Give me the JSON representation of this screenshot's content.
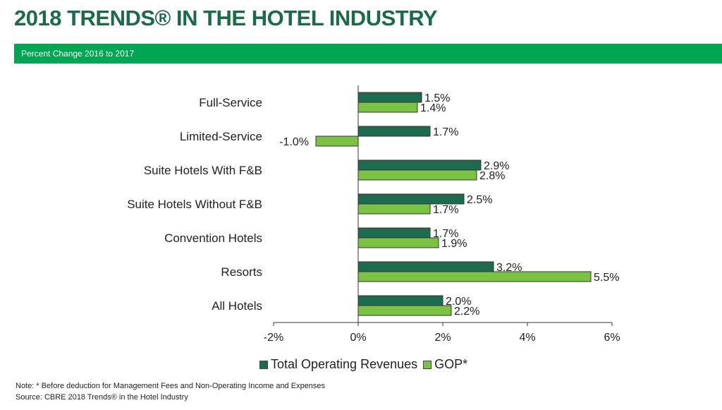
{
  "header": {
    "title": "2018 TRENDS® IN THE HOTEL INDUSTRY",
    "subtitle": "Percent Change 2016 to 2017"
  },
  "colors": {
    "title": "#1a6b48",
    "band": "#00a651",
    "revenues": "#1d6b4f",
    "gop": "#7cc242"
  },
  "chart_data": {
    "type": "bar",
    "orientation": "horizontal",
    "categories": [
      "Full-Service",
      "Limited-Service",
      "Suite Hotels With F&B",
      "Suite Hotels Without F&B",
      "Convention Hotels",
      "Resorts",
      "All Hotels"
    ],
    "series": [
      {
        "name": "Total Operating Revenues",
        "values": [
          1.5,
          1.7,
          2.9,
          2.5,
          1.7,
          3.2,
          2.0
        ],
        "labels": [
          "1.5%",
          "1.7%",
          "2.9%",
          "2.5%",
          "1.7%",
          "3.2%",
          "2.0%"
        ]
      },
      {
        "name": "GOP*",
        "values": [
          1.4,
          -1.0,
          2.8,
          1.7,
          1.9,
          5.5,
          2.2
        ],
        "labels": [
          "1.4%",
          "-1.0%",
          "2.8%",
          "1.7%",
          "1.9%",
          "5.5%",
          "2.2%"
        ]
      }
    ],
    "xlim": [
      -2,
      6
    ],
    "xticks": [
      -2,
      0,
      2,
      4,
      6
    ],
    "xtick_labels": [
      "-2%",
      "0%",
      "2%",
      "4%",
      "6%"
    ],
    "grid": false,
    "legend_position": "bottom"
  },
  "notes": {
    "note": "Note: * Before deduction for Management Fees and Non-Operating Income and Expenses",
    "source": "Source: CBRE 2018 Trends® in the Hotel Industry"
  }
}
